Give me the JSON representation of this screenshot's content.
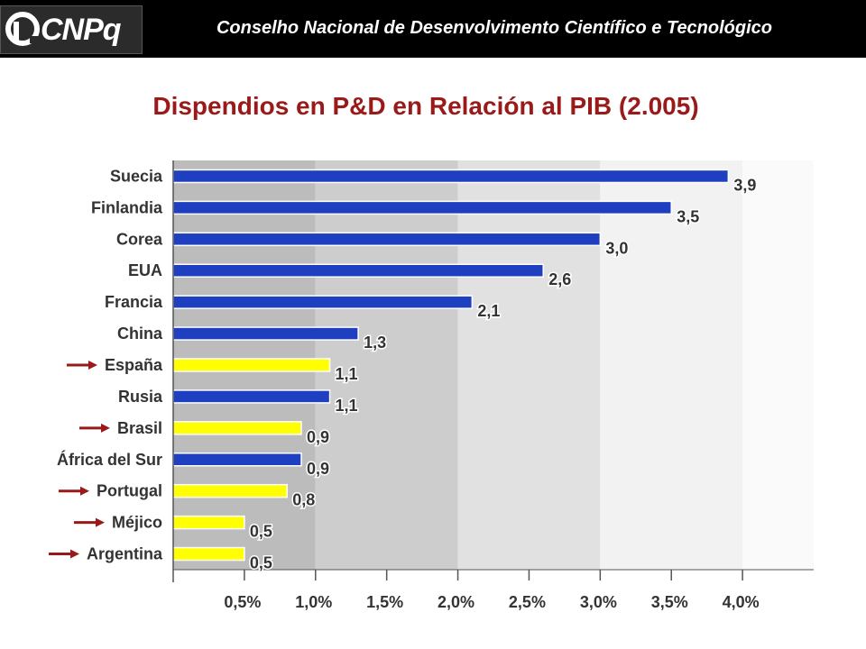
{
  "header": {
    "logo_text": "CNPq",
    "title": "Conselho Nacional de Desenvolvimento Científico e Tecnológico"
  },
  "colors": {
    "header_bg": "#000000",
    "title": "#9a1a1a",
    "bar_default": "#1e3fbf",
    "bar_highlight": "#ffff00",
    "arrow": "#9a1a1a"
  },
  "chart_data": {
    "type": "bar",
    "orientation": "horizontal",
    "title": "Dispendios en P&D en Relación al PIB (2.005)",
    "categories": [
      "Suecia",
      "Finlandia",
      "Corea",
      "EUA",
      "Francia",
      "China",
      "España",
      "Rusia",
      "Brasil",
      "África del Sur",
      "Portugal",
      "Méjico",
      "Argentina"
    ],
    "values": [
      3.9,
      3.5,
      3.0,
      2.6,
      2.1,
      1.3,
      1.1,
      1.1,
      0.9,
      0.9,
      0.8,
      0.5,
      0.5
    ],
    "value_labels": [
      "3,9",
      "3,5",
      "3,0",
      "2,6",
      "2,1",
      "1,3",
      "1,1",
      "1,1",
      "0,9",
      "0,9",
      "0,8",
      "0,5",
      "0,5"
    ],
    "highlighted": [
      false,
      false,
      false,
      false,
      false,
      false,
      true,
      false,
      true,
      false,
      true,
      true,
      true
    ],
    "xlim": [
      0,
      4.5
    ],
    "x_ticks": [
      0.5,
      1.0,
      1.5,
      2.0,
      2.5,
      3.0,
      3.5,
      4.0
    ],
    "x_tick_labels": [
      "0,5%",
      "1,0%",
      "1,5%",
      "2,0%",
      "2,5%",
      "3,0%",
      "3,5%",
      "4,0%"
    ],
    "background_bands": [
      "#bcbcbc",
      "#cdcdcd",
      "#e1e1e1",
      "#f2f2f2"
    ],
    "legend": "none"
  }
}
